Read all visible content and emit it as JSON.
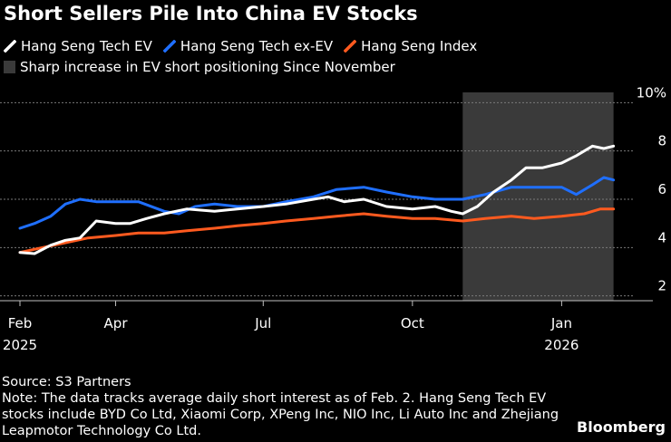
{
  "title": "Short Sellers Pile Into China EV Stocks",
  "legend": {
    "items": [
      {
        "label": "Hang Seng Tech EV",
        "color": "#ffffff"
      },
      {
        "label": "Hang Seng Tech ex-EV",
        "color": "#1f6fff"
      },
      {
        "label": "Hang Seng Index",
        "color": "#ff5a1f"
      }
    ],
    "shaded_label": "Sharp increase in EV short positioning Since November"
  },
  "footer": {
    "source": "Source: S3 Partners",
    "note": "Note: The data tracks average daily short interest as of Feb. 2. Hang Seng Tech EV stocks include BYD Co Ltd, Xiaomi Corp, XPeng Inc, NIO Inc, Li Auto Inc and Zhejiang Leapmotor Technology Co Ltd."
  },
  "brand": "Bloomberg",
  "chart_data": {
    "type": "line",
    "x_ticks": [
      {
        "date": "2025-02-01",
        "label": "Feb",
        "year": "2025"
      },
      {
        "date": "2025-04-01",
        "label": "Apr",
        "year": ""
      },
      {
        "date": "2025-07-01",
        "label": "Jul",
        "year": ""
      },
      {
        "date": "2025-10-01",
        "label": "Oct",
        "year": ""
      },
      {
        "date": "2026-01-01",
        "label": "Jan",
        "year": "2026"
      }
    ],
    "y_ticks": [
      2,
      4,
      6,
      8,
      10
    ],
    "y_tick_labels": [
      "2",
      "4",
      "6",
      "8",
      "10%"
    ],
    "ylim": [
      1.5,
      10.5
    ],
    "xlim": [
      "2025-02-01",
      "2026-02-05"
    ],
    "grid": true,
    "shaded_region": {
      "start": "2025-11-01",
      "end": "2026-02-02",
      "color": "#3a3a3a"
    },
    "series": [
      {
        "name": "Hang Seng Tech EV",
        "color": "#ffffff",
        "points": [
          [
            "2025-02-01",
            3.8
          ],
          [
            "2025-02-10",
            3.75
          ],
          [
            "2025-02-20",
            4.1
          ],
          [
            "2025-03-01",
            4.3
          ],
          [
            "2025-03-10",
            4.4
          ],
          [
            "2025-03-20",
            5.1
          ],
          [
            "2025-04-01",
            5.0
          ],
          [
            "2025-04-10",
            5.0
          ],
          [
            "2025-04-20",
            5.2
          ],
          [
            "2025-05-01",
            5.4
          ],
          [
            "2025-05-15",
            5.6
          ],
          [
            "2025-06-01",
            5.5
          ],
          [
            "2025-06-15",
            5.6
          ],
          [
            "2025-07-01",
            5.7
          ],
          [
            "2025-07-15",
            5.8
          ],
          [
            "2025-08-01",
            6.0
          ],
          [
            "2025-08-10",
            6.1
          ],
          [
            "2025-08-20",
            5.9
          ],
          [
            "2025-09-01",
            6.0
          ],
          [
            "2025-09-15",
            5.7
          ],
          [
            "2025-10-01",
            5.6
          ],
          [
            "2025-10-15",
            5.7
          ],
          [
            "2025-10-25",
            5.5
          ],
          [
            "2025-11-01",
            5.4
          ],
          [
            "2025-11-10",
            5.7
          ],
          [
            "2025-11-20",
            6.3
          ],
          [
            "2025-12-01",
            6.8
          ],
          [
            "2025-12-10",
            7.3
          ],
          [
            "2025-12-20",
            7.3
          ],
          [
            "2026-01-01",
            7.5
          ],
          [
            "2026-01-10",
            7.8
          ],
          [
            "2026-01-20",
            8.2
          ],
          [
            "2026-01-27",
            8.1
          ],
          [
            "2026-02-02",
            8.2
          ]
        ]
      },
      {
        "name": "Hang Seng Tech ex-EV",
        "color": "#1f6fff",
        "points": [
          [
            "2025-02-01",
            4.8
          ],
          [
            "2025-02-10",
            5.0
          ],
          [
            "2025-02-20",
            5.3
          ],
          [
            "2025-03-01",
            5.8
          ],
          [
            "2025-03-10",
            6.0
          ],
          [
            "2025-03-20",
            5.9
          ],
          [
            "2025-04-01",
            5.9
          ],
          [
            "2025-04-15",
            5.9
          ],
          [
            "2025-05-01",
            5.5
          ],
          [
            "2025-05-10",
            5.4
          ],
          [
            "2025-05-20",
            5.7
          ],
          [
            "2025-06-01",
            5.8
          ],
          [
            "2025-06-15",
            5.7
          ],
          [
            "2025-07-01",
            5.7
          ],
          [
            "2025-07-15",
            5.9
          ],
          [
            "2025-08-01",
            6.1
          ],
          [
            "2025-08-15",
            6.4
          ],
          [
            "2025-09-01",
            6.5
          ],
          [
            "2025-09-15",
            6.3
          ],
          [
            "2025-10-01",
            6.1
          ],
          [
            "2025-10-15",
            6.0
          ],
          [
            "2025-11-01",
            6.0
          ],
          [
            "2025-11-15",
            6.2
          ],
          [
            "2025-12-01",
            6.5
          ],
          [
            "2025-12-15",
            6.5
          ],
          [
            "2026-01-01",
            6.5
          ],
          [
            "2026-01-10",
            6.2
          ],
          [
            "2026-01-20",
            6.6
          ],
          [
            "2026-01-27",
            6.9
          ],
          [
            "2026-02-02",
            6.8
          ]
        ]
      },
      {
        "name": "Hang Seng Index",
        "color": "#ff5a1f",
        "points": [
          [
            "2025-02-01",
            3.8
          ],
          [
            "2025-02-15",
            4.0
          ],
          [
            "2025-03-01",
            4.2
          ],
          [
            "2025-03-15",
            4.4
          ],
          [
            "2025-04-01",
            4.5
          ],
          [
            "2025-04-15",
            4.6
          ],
          [
            "2025-05-01",
            4.6
          ],
          [
            "2025-05-15",
            4.7
          ],
          [
            "2025-06-01",
            4.8
          ],
          [
            "2025-06-15",
            4.9
          ],
          [
            "2025-07-01",
            5.0
          ],
          [
            "2025-07-15",
            5.1
          ],
          [
            "2025-08-01",
            5.2
          ],
          [
            "2025-08-15",
            5.3
          ],
          [
            "2025-09-01",
            5.4
          ],
          [
            "2025-09-15",
            5.3
          ],
          [
            "2025-10-01",
            5.2
          ],
          [
            "2025-10-15",
            5.2
          ],
          [
            "2025-11-01",
            5.1
          ],
          [
            "2025-11-15",
            5.2
          ],
          [
            "2025-12-01",
            5.3
          ],
          [
            "2025-12-15",
            5.2
          ],
          [
            "2026-01-01",
            5.3
          ],
          [
            "2026-01-15",
            5.4
          ],
          [
            "2026-01-25",
            5.6
          ],
          [
            "2026-02-02",
            5.6
          ]
        ]
      }
    ]
  }
}
